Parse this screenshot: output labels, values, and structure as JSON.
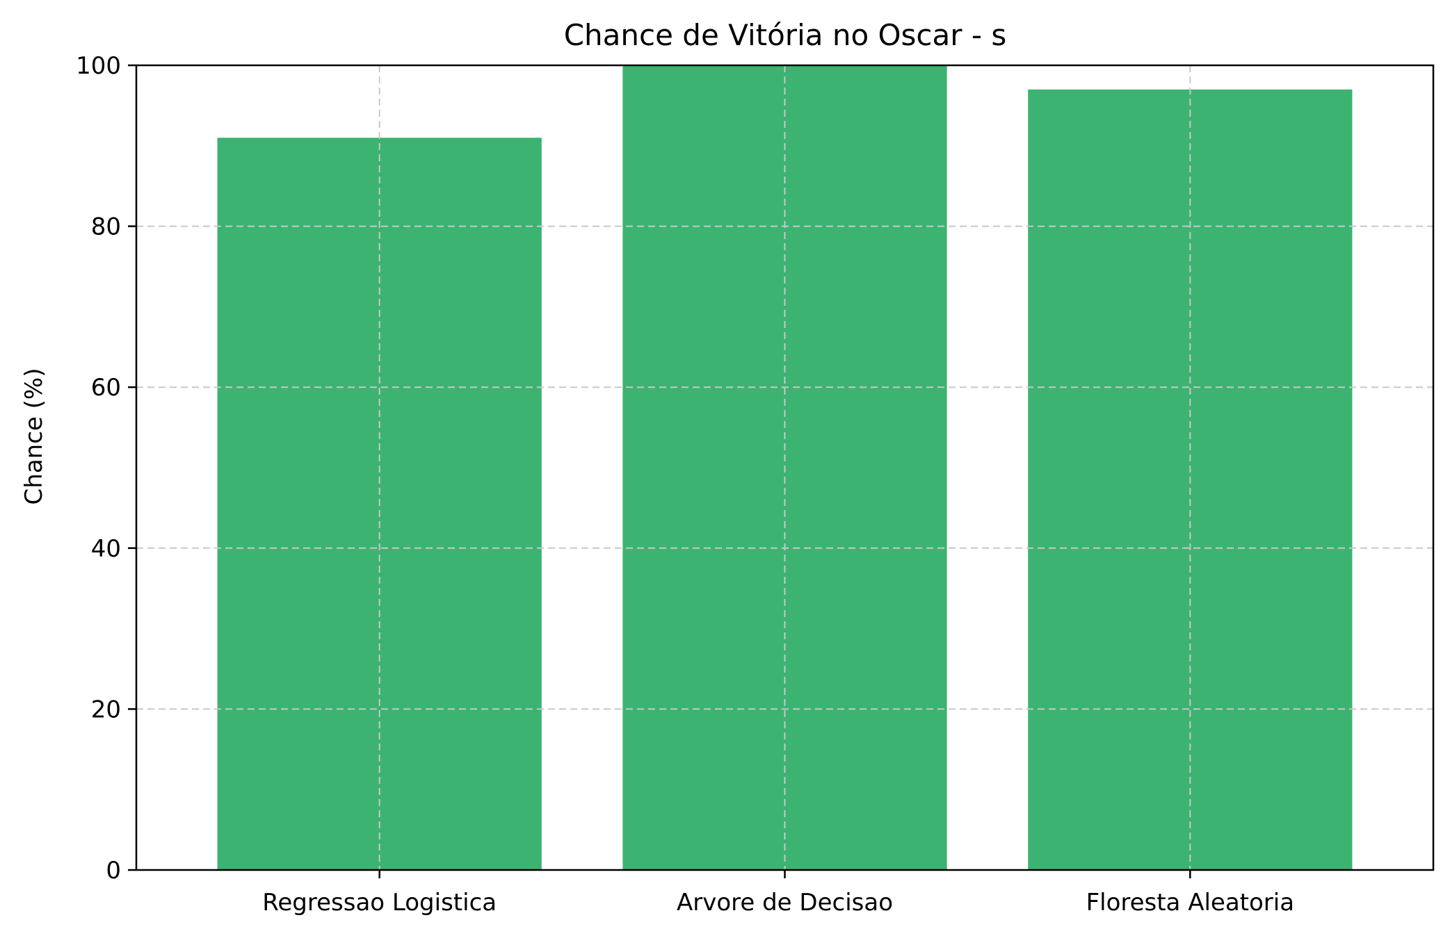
{
  "chart_data": {
    "type": "bar",
    "title": "Chance de Vitória no Oscar - s",
    "xlabel": "",
    "ylabel": "Chance (%)",
    "categories": [
      "Regressao Logistica",
      "Arvore de Decisao",
      "Floresta Aleatoria"
    ],
    "values": [
      91,
      100,
      97
    ],
    "ylim": [
      0,
      100
    ],
    "yticks": [
      0,
      20,
      40,
      60,
      80,
      100
    ],
    "bar_color": "#3cb371",
    "grid": true,
    "legend": "none"
  }
}
